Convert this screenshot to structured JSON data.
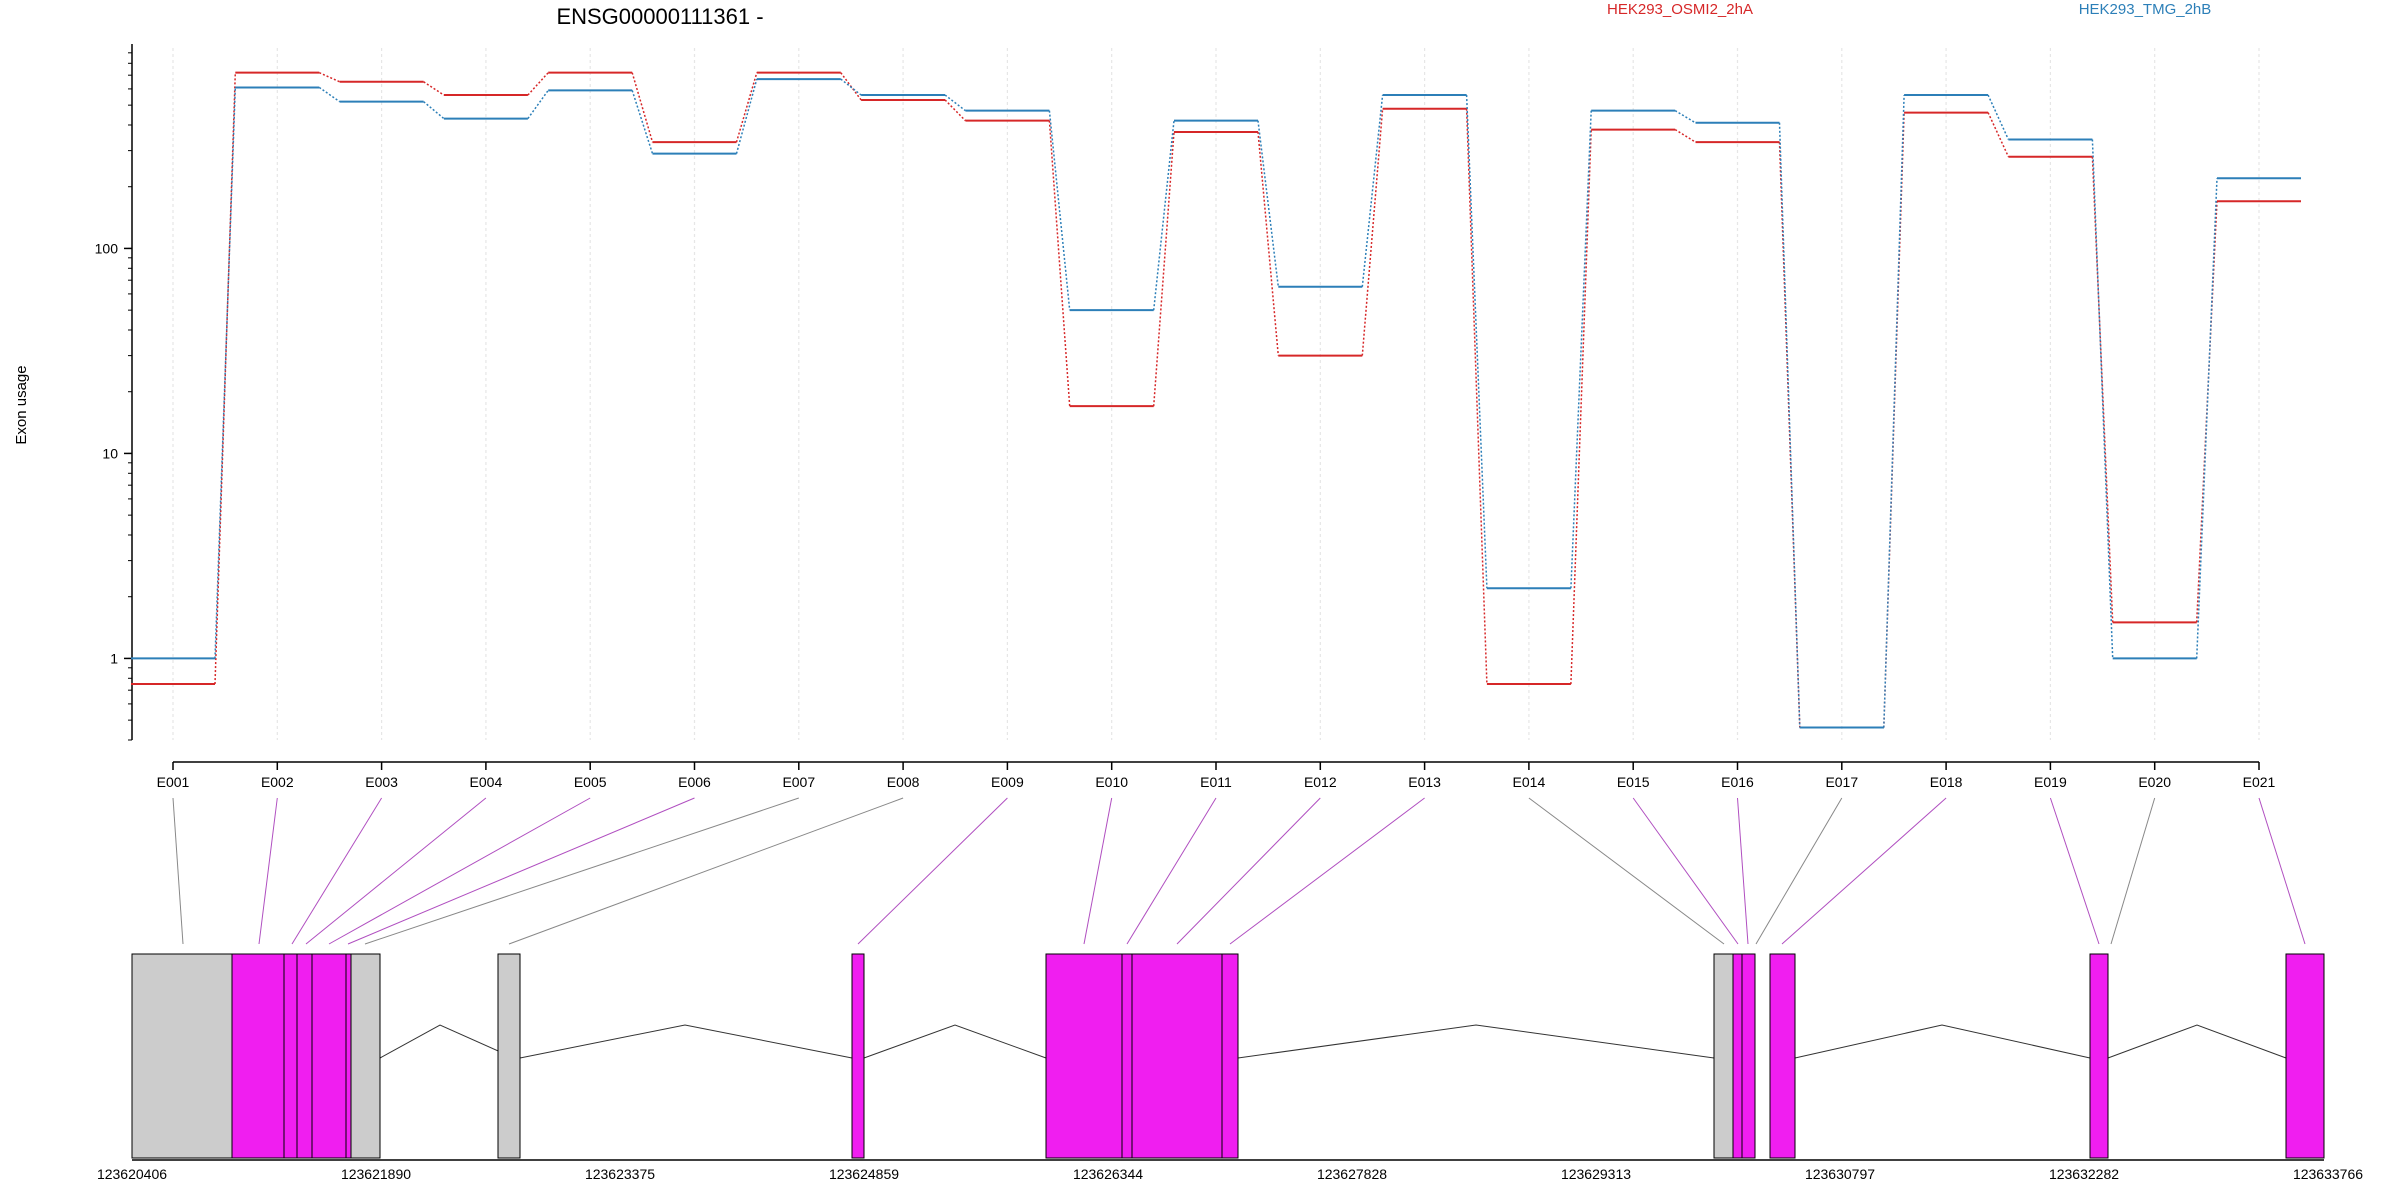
{
  "chart_data": {
    "type": "line",
    "title": "ENSG00000111361 -",
    "ylabel": "Exon usage",
    "yscale": "log",
    "ylim": [
      0.4,
      950
    ],
    "yticks": [
      1,
      10,
      100
    ],
    "ytick_labels": [
      "1",
      "10",
      "100"
    ],
    "categories": [
      "E001",
      "E002",
      "E003",
      "E004",
      "E005",
      "E006",
      "E007",
      "E008",
      "E009",
      "E010",
      "E011",
      "E012",
      "E013",
      "E014",
      "E015",
      "E016",
      "E017",
      "E018",
      "E019",
      "E020",
      "E021"
    ],
    "series": [
      {
        "name": "HEK293_OSMI2_2hA",
        "color": "#d62728",
        "values": [
          0.75,
          720,
          650,
          560,
          720,
          330,
          720,
          530,
          420,
          17,
          370,
          30,
          480,
          0.75,
          380,
          330,
          0.46,
          460,
          280,
          1.5,
          170
        ]
      },
      {
        "name": "HEK293_TMG_2hB",
        "color": "#2c7fb8",
        "values": [
          1.0,
          610,
          520,
          430,
          590,
          290,
          670,
          560,
          470,
          50,
          420,
          65,
          560,
          2.2,
          470,
          410,
          0.46,
          560,
          340,
          1.0,
          220
        ]
      }
    ],
    "grid": "vertical-dotted",
    "legend": "top"
  },
  "gene_model": {
    "coordinate_labels": [
      "123620406",
      "123621890",
      "123623375",
      "123624859",
      "123626344",
      "123627828",
      "123629313",
      "123630797",
      "123632282",
      "123633766"
    ],
    "colors": {
      "used": "#f01ef0",
      "other": "#cccccc",
      "outline": "#000000",
      "connector_used": "#b04fc0",
      "connector_other": "#888888"
    }
  }
}
